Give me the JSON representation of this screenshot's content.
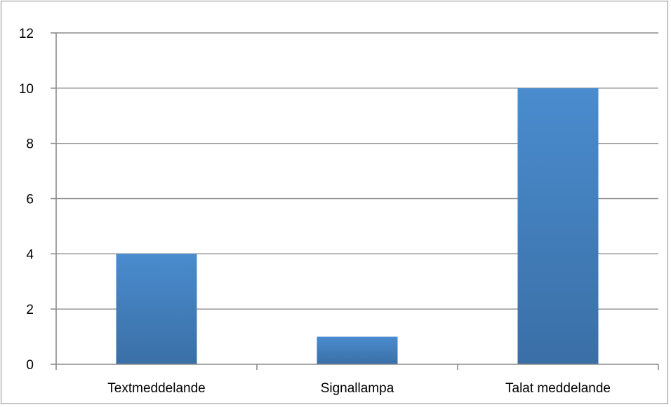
{
  "chart_data": {
    "type": "bar",
    "categories": [
      "Textmeddelande",
      "Signallampa",
      "Talat meddelande"
    ],
    "values": [
      4,
      1,
      10
    ],
    "yticks": [
      0,
      2,
      4,
      6,
      8,
      10,
      12
    ],
    "ylim": [
      0,
      12
    ],
    "grid": true,
    "legend": "none",
    "bar_color_top": "#4a8ccf",
    "bar_color_bottom": "#3a6fa6"
  }
}
